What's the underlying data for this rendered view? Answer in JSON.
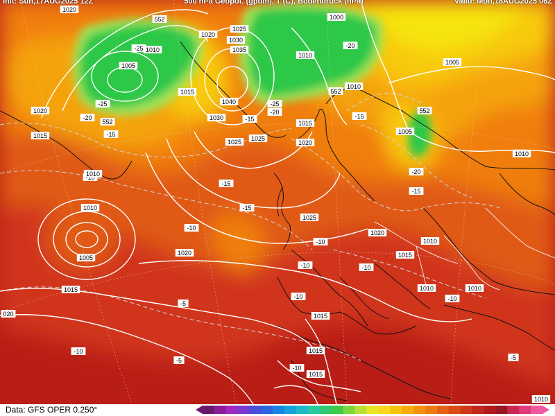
{
  "header": {
    "init": "Init: Sun,17AUG2025 12Z",
    "title": "500 hPa Geopot. (gpdm), T (C), Bodendruck (hPa)",
    "valid": "Valid: Mon,18AUG2025 06Z"
  },
  "footer": {
    "source": "Data: GFS OPER 0.250°"
  },
  "colors": {
    "deep_red": "#b91e16",
    "red": "#d0361a",
    "red_orange": "#e05a14",
    "orange": "#f07e0c",
    "light_orange": "#f5a30a",
    "yellow_orange": "#f8c90a",
    "yellow": "#f6e50e",
    "green": "#2ec84a",
    "light_green": "#9ee35a"
  },
  "color_scale": [
    "#6a1a6a",
    "#8a1e9a",
    "#a028c0",
    "#7a3ad0",
    "#4a4ed8",
    "#2a66e0",
    "#1a84e0",
    "#18a0d8",
    "#20b8c8",
    "#2ac8a0",
    "#30c870",
    "#3ccc48",
    "#7ad83c",
    "#b8e034",
    "#e8e428",
    "#f8d81e",
    "#f8c414",
    "#f8ac10",
    "#f4920e",
    "#ee7a10",
    "#e66212",
    "#dc4c16",
    "#d0381a",
    "#c0281c",
    "#b01c1e",
    "#9a1620",
    "#c82850",
    "#e03a78",
    "#f05aa0"
  ],
  "labels": [
    {
      "t": "1020",
      "k": "p"
    },
    {
      "t": "552",
      "k": "g"
    },
    {
      "t": "1020",
      "k": "p"
    },
    {
      "t": "1025",
      "k": "p"
    },
    {
      "t": "1000",
      "k": "p"
    },
    {
      "t": "1010",
      "k": "p"
    },
    {
      "t": "-25",
      "k": "t"
    },
    {
      "t": "1005",
      "k": "p"
    },
    {
      "t": "1030",
      "k": "p"
    },
    {
      "t": "1035",
      "k": "p"
    },
    {
      "t": "-20",
      "k": "t"
    },
    {
      "t": "1010",
      "k": "p"
    },
    {
      "t": "1005",
      "k": "p"
    },
    {
      "t": "1015",
      "k": "p"
    },
    {
      "t": "1010",
      "k": "p"
    },
    {
      "t": "552",
      "k": "g"
    },
    {
      "t": "-25",
      "k": "t"
    },
    {
      "t": "1040",
      "k": "p"
    },
    {
      "t": "-25",
      "k": "t"
    },
    {
      "t": "-20",
      "k": "t"
    },
    {
      "t": "1020",
      "k": "p"
    },
    {
      "t": "-20",
      "k": "t"
    },
    {
      "t": "552",
      "k": "g"
    },
    {
      "t": "1030",
      "k": "p"
    },
    {
      "t": "-15",
      "k": "t"
    },
    {
      "t": "1015",
      "k": "p"
    },
    {
      "t": "-15",
      "k": "t"
    },
    {
      "t": "552",
      "k": "g"
    },
    {
      "t": "1015",
      "k": "p"
    },
    {
      "t": "-15",
      "k": "t"
    },
    {
      "t": "1005",
      "k": "p"
    },
    {
      "t": "1025",
      "k": "p"
    },
    {
      "t": "1025",
      "k": "p"
    },
    {
      "t": "1020",
      "k": "p"
    },
    {
      "t": "1010",
      "k": "p"
    },
    {
      "t": "-10",
      "k": "t"
    },
    {
      "t": "-20",
      "k": "t"
    },
    {
      "t": "-15",
      "k": "t"
    },
    {
      "t": "-15",
      "k": "t"
    },
    {
      "t": "-15",
      "k": "t"
    },
    {
      "t": "1010",
      "k": "p"
    },
    {
      "t": "1025",
      "k": "p"
    },
    {
      "t": "-10",
      "k": "t"
    },
    {
      "t": "1020",
      "k": "p"
    },
    {
      "t": "1010",
      "k": "p"
    },
    {
      "t": "1005",
      "k": "p"
    },
    {
      "t": "1020",
      "k": "p"
    },
    {
      "t": "-10",
      "k": "t"
    },
    {
      "t": "1015",
      "k": "p"
    },
    {
      "t": "-10",
      "k": "t"
    },
    {
      "t": "-10",
      "k": "t"
    },
    {
      "t": "1010",
      "k": "p"
    },
    {
      "t": "1010",
      "k": "p"
    },
    {
      "t": "-10",
      "k": "t"
    },
    {
      "t": "-10",
      "k": "t"
    },
    {
      "t": "-5",
      "k": "t"
    },
    {
      "t": "020",
      "k": "p"
    },
    {
      "t": "1015",
      "k": "p"
    },
    {
      "t": "-10",
      "k": "t"
    },
    {
      "t": "1015",
      "k": "p"
    },
    {
      "t": "-5",
      "k": "t"
    },
    {
      "t": "-10",
      "k": "t"
    },
    {
      "t": "1015",
      "k": "p"
    },
    {
      "t": "-5",
      "k": "t"
    },
    {
      "t": "1010",
      "k": "p"
    },
    {
      "t": "1010",
      "k": "p"
    },
    {
      "t": "1015",
      "k": "p"
    }
  ]
}
